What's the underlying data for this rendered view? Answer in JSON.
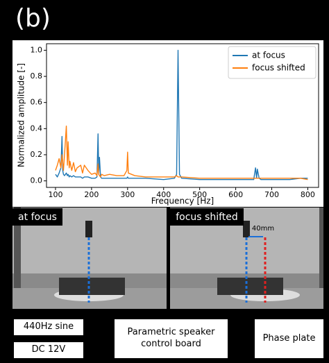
{
  "panel_label": "(b)",
  "chart_data": {
    "type": "line",
    "xlabel": "Frequency [Hz]",
    "ylabel": "Normalized amplitude [-]",
    "x": [
      100,
      105,
      110,
      115,
      118,
      120,
      122,
      125,
      130,
      133,
      135,
      138,
      140,
      145,
      150,
      155,
      160,
      170,
      175,
      180,
      190,
      200,
      210,
      215,
      218,
      220,
      222,
      225,
      228,
      235,
      250,
      270,
      290,
      298,
      300,
      302,
      320,
      350,
      400,
      430,
      436,
      440,
      444,
      450,
      500,
      550,
      600,
      650,
      655,
      658,
      660,
      665,
      670,
      700,
      750,
      780,
      800
    ],
    "series": [
      {
        "name": "at focus",
        "color": "#1f77b4",
        "values": [
          0.05,
          0.03,
          0.06,
          0.1,
          0.34,
          0.08,
          0.05,
          0.04,
          0.06,
          0.04,
          0.05,
          0.03,
          0.04,
          0.03,
          0.04,
          0.03,
          0.03,
          0.03,
          0.02,
          0.03,
          0.03,
          0.02,
          0.02,
          0.03,
          0.36,
          0.05,
          0.18,
          0.03,
          0.02,
          0.02,
          0.02,
          0.02,
          0.02,
          0.02,
          0.03,
          0.02,
          0.02,
          0.02,
          0.01,
          0.02,
          0.05,
          1.0,
          0.05,
          0.02,
          0.01,
          0.01,
          0.01,
          0.01,
          0.1,
          0.02,
          0.09,
          0.02,
          0.01,
          0.01,
          0.01,
          0.02,
          0.02
        ]
      },
      {
        "name": "focus shifted",
        "color": "#ff7f0e",
        "values": [
          0.08,
          0.12,
          0.17,
          0.1,
          0.2,
          0.14,
          0.08,
          0.2,
          0.42,
          0.12,
          0.3,
          0.1,
          0.15,
          0.08,
          0.14,
          0.07,
          0.1,
          0.12,
          0.06,
          0.12,
          0.08,
          0.05,
          0.06,
          0.04,
          0.13,
          0.05,
          0.04,
          0.03,
          0.05,
          0.04,
          0.05,
          0.04,
          0.04,
          0.08,
          0.22,
          0.06,
          0.04,
          0.03,
          0.03,
          0.03,
          0.04,
          0.03,
          0.03,
          0.03,
          0.02,
          0.02,
          0.02,
          0.02,
          0.02,
          0.02,
          0.02,
          0.02,
          0.02,
          0.02,
          0.02,
          0.02,
          0.01
        ]
      }
    ],
    "xlim": [
      75,
      830
    ],
    "ylim": [
      -0.05,
      1.05
    ],
    "xticks": [
      100,
      200,
      300,
      400,
      500,
      600,
      700,
      800
    ],
    "yticks": [
      {
        "value": 0,
        "label": "0.0"
      },
      {
        "value": 0.2,
        "label": "0.2"
      },
      {
        "value": 0.4,
        "label": "0.4"
      },
      {
        "value": 0.6,
        "label": "0.6"
      },
      {
        "value": 0.8,
        "label": "0.8"
      },
      {
        "value": 1.0,
        "label": "1.0"
      }
    ],
    "legend": "upper right",
    "grid": false
  },
  "photos": {
    "left_label": "at focus",
    "right_label": "focus shifted",
    "offset": "40mm"
  },
  "boxes": {
    "signal": "440Hz sine",
    "power": "DC 12V",
    "board": "Parametric speaker control board",
    "plate": "Phase plate"
  }
}
